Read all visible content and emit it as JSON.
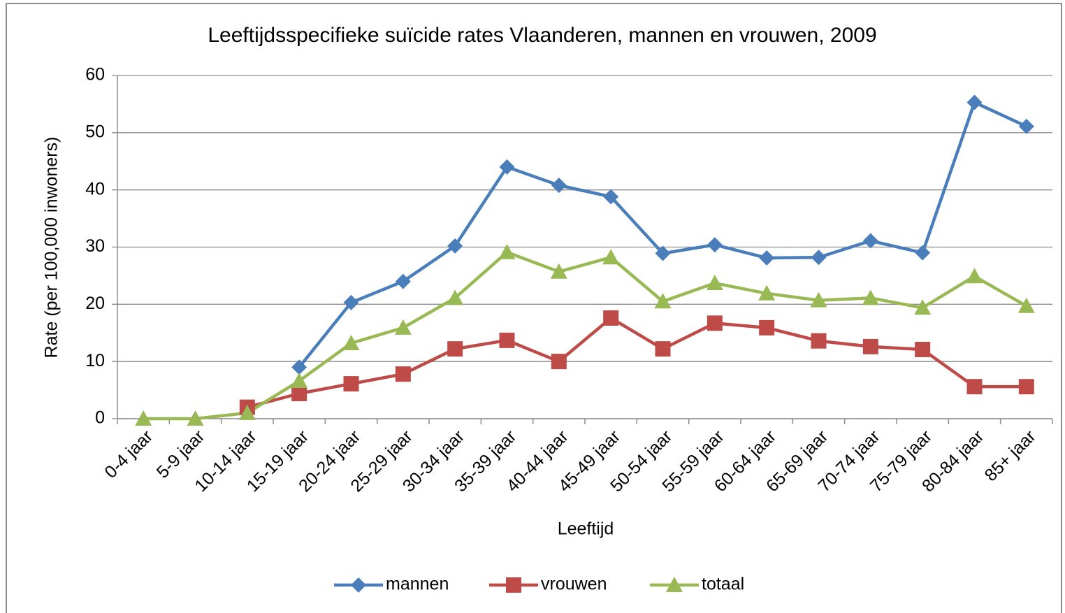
{
  "chart_data": {
    "type": "line",
    "title": "Leeftijdsspecifieke suïcide rates Vlaanderen, mannen en vrouwen, 2009",
    "x_label": "Leeftijd",
    "y_label": "Rate (per 100,000 inwoners)",
    "categories": [
      "0-4 jaar",
      "5-9 jaar",
      "10-14 jaar",
      "15-19 jaar",
      "20-24 jaar",
      "25-29 jaar",
      "30-34 jaar",
      "35-39 jaar",
      "40-44 jaar",
      "45-49 jaar",
      "50-54 jaar",
      "55-59 jaar",
      "60-64 jaar",
      "65-69 jaar",
      "70-74 jaar",
      "75-79 jaar",
      "80-84 jaar",
      "85+ jaar"
    ],
    "series": [
      {
        "name": "mannen",
        "color": "#4a7ebb",
        "marker": "diamond",
        "values": [
          null,
          null,
          null,
          9.0,
          20.3,
          24.0,
          30.2,
          44.0,
          40.8,
          38.8,
          28.9,
          30.4,
          28.1,
          28.2,
          31.1,
          29.0,
          55.3,
          51.1
        ]
      },
      {
        "name": "vrouwen",
        "color": "#be4b48",
        "marker": "square",
        "values": [
          null,
          null,
          2.0,
          4.4,
          6.1,
          7.8,
          12.2,
          13.7,
          10.0,
          17.6,
          12.2,
          16.7,
          15.9,
          13.6,
          12.6,
          12.1,
          5.6,
          5.6
        ]
      },
      {
        "name": "totaal",
        "color": "#98b954",
        "marker": "triangle",
        "values": [
          0,
          0,
          1.0,
          6.6,
          13.2,
          15.9,
          21.1,
          29.1,
          25.7,
          28.2,
          20.5,
          23.7,
          21.9,
          20.7,
          21.1,
          19.4,
          24.9,
          19.7
        ]
      }
    ],
    "ylim": [
      0,
      60
    ],
    "yticks": [
      0,
      10,
      20,
      30,
      40,
      50,
      60
    ],
    "grid": true,
    "legend": "bottom"
  }
}
